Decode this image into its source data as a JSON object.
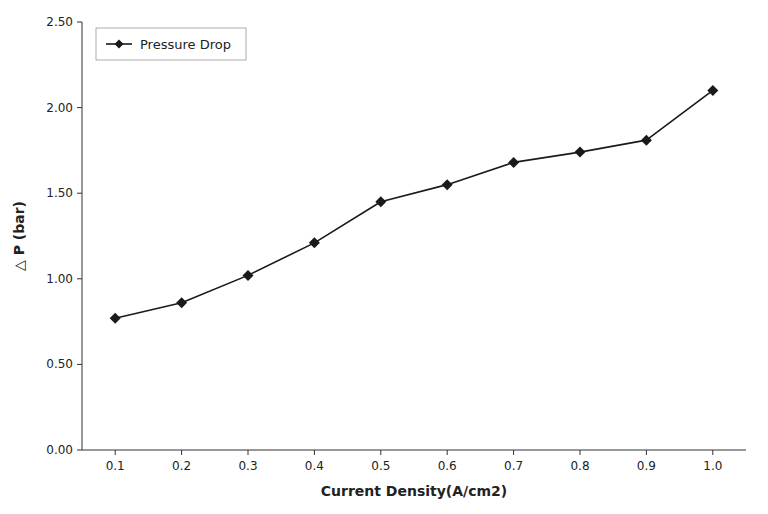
{
  "chart_data": {
    "type": "line",
    "xlabel": "Current Density(A/cm2)",
    "ylabel": "△ P (bar)",
    "x": [
      0.1,
      0.2,
      0.3,
      0.4,
      0.5,
      0.6,
      0.7,
      0.8,
      0.9,
      1.0
    ],
    "series": [
      {
        "name": "Pressure Drop",
        "color": "#1a1a1a",
        "marker": "diamond",
        "values": [
          0.77,
          0.86,
          1.02,
          1.21,
          1.45,
          1.55,
          1.68,
          1.74,
          1.81,
          2.1
        ]
      }
    ],
    "xlim": [
      0.05,
      1.05
    ],
    "ylim": [
      0.0,
      2.5
    ],
    "xticks": [
      0.1,
      0.2,
      0.3,
      0.4,
      0.5,
      0.6,
      0.7,
      0.8,
      0.9,
      {
        "value": 1.0,
        "label": "1.0"
      }
    ],
    "yticks": [
      {
        "value": 0.0,
        "label": "0.00"
      },
      {
        "value": 0.5,
        "label": "0.50"
      },
      {
        "value": 1.0,
        "label": "1.00"
      },
      {
        "value": 1.5,
        "label": "1.50"
      },
      {
        "value": 2.0,
        "label": "2.00"
      },
      {
        "value": 2.5,
        "label": "2.50"
      }
    ],
    "grid": false,
    "legend": "upper left"
  }
}
